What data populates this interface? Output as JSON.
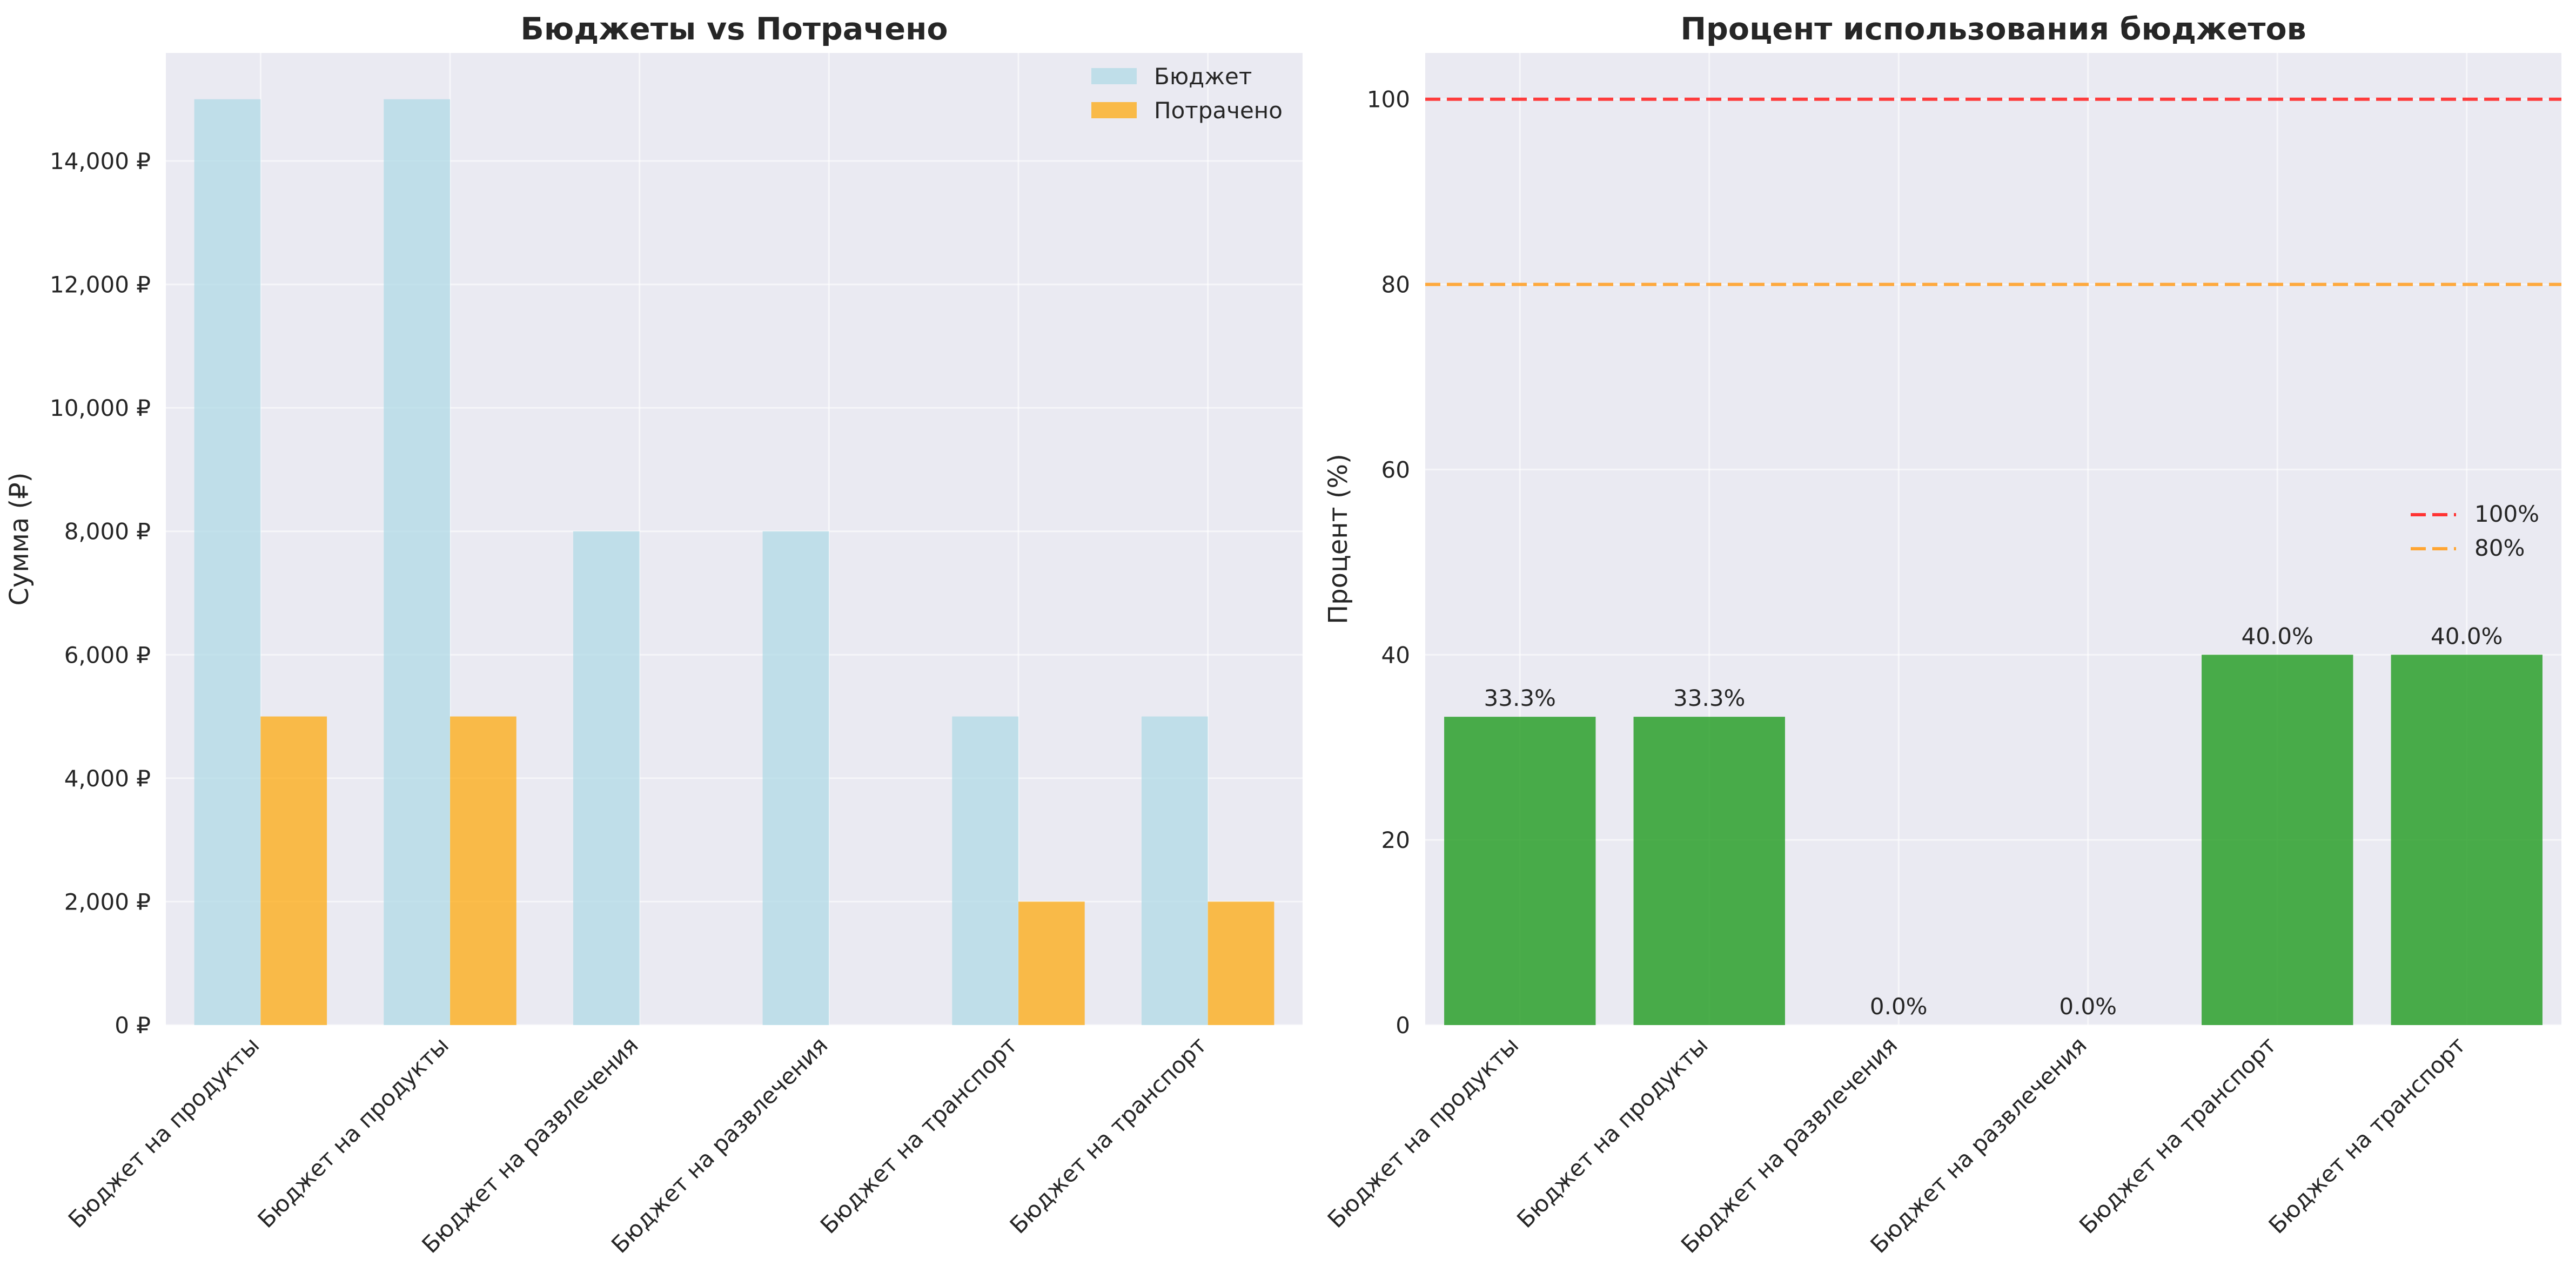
{
  "chart_data": [
    {
      "type": "bar",
      "title": "Бюджеты vs Потрачено",
      "xlabel": "",
      "ylabel": "Сумма (₽)",
      "categories": [
        "Бюджет на продукты",
        "Бюджет на продукты",
        "Бюджет на развлечения",
        "Бюджет на развлечения",
        "Бюджет на транспорт",
        "Бюджет на транспорт"
      ],
      "series": [
        {
          "name": "Бюджет",
          "values": [
            15000,
            15000,
            8000,
            8000,
            5000,
            5000
          ],
          "color": "#add8e6"
        },
        {
          "name": "Потрачено",
          "values": [
            5000,
            5000,
            0,
            0,
            2000,
            2000
          ],
          "color": "#ffa500"
        }
      ],
      "ylim": [
        0,
        15750
      ],
      "yticks": [
        0,
        2000,
        4000,
        6000,
        8000,
        10000,
        12000,
        14000
      ],
      "ytick_labels": [
        "0 ₽",
        "2,000 ₽",
        "4,000 ₽",
        "6,000 ₽",
        "8,000 ₽",
        "10,000 ₽",
        "12,000 ₽",
        "14,000 ₽"
      ],
      "legend_position": "top-right",
      "grid": true
    },
    {
      "type": "bar",
      "title": "Процент использования бюджетов",
      "xlabel": "",
      "ylabel": "Процент (%)",
      "categories": [
        "Бюджет на продукты",
        "Бюджет на продукты",
        "Бюджет на развлечения",
        "Бюджет на развлечения",
        "Бюджет на транспорт",
        "Бюджет на транспорт"
      ],
      "values": [
        33.3,
        33.3,
        0.0,
        0.0,
        40.0,
        40.0
      ],
      "value_labels": [
        "33.3%",
        "33.3%",
        "0.0%",
        "0.0%",
        "40.0%",
        "40.0%"
      ],
      "bar_color": "#2ca02c",
      "ylim": [
        0,
        105
      ],
      "yticks": [
        0,
        20,
        40,
        60,
        80,
        100
      ],
      "ytick_labels": [
        "0",
        "20",
        "40",
        "60",
        "80",
        "100"
      ],
      "reference_lines": [
        {
          "name": "100%",
          "value": 100,
          "color": "#ff3333"
        },
        {
          "name": "80%",
          "value": 80,
          "color": "#ffa533"
        }
      ],
      "legend_position": "center-right",
      "grid": true
    }
  ]
}
